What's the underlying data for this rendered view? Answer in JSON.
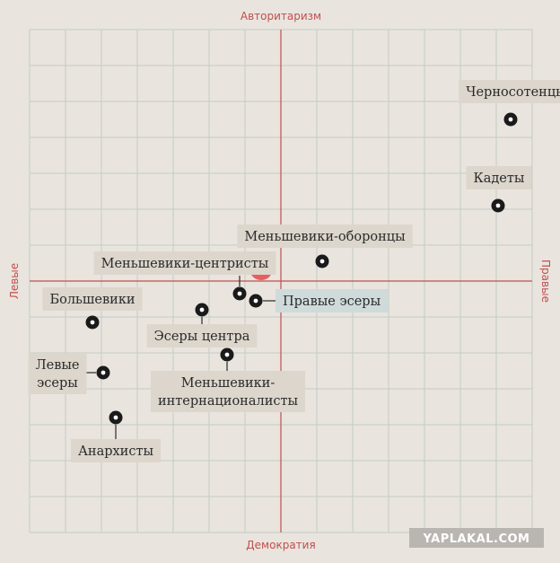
{
  "chart_data": {
    "type": "scatter",
    "grid": true,
    "axes": {
      "top": "Авторитаризм",
      "bottom": "Демократия",
      "left": "Левые",
      "right": "Правые"
    },
    "xlim": [
      -7,
      7
    ],
    "ylim": [
      -7,
      7
    ],
    "points": [
      {
        "name": "Черносотенцы",
        "x": 6.4,
        "y": 4.5
      },
      {
        "name": "Кадеты",
        "x": 6.05,
        "y": 2.1
      },
      {
        "name": "Меньшевики-оборонцы",
        "x": 1.15,
        "y": 0.55
      },
      {
        "name": "Меньшевики-центристы",
        "x": -1.15,
        "y": -0.35
      },
      {
        "name": "Правые эсеры",
        "x": -0.7,
        "y": -0.55
      },
      {
        "name": "Большевики",
        "x": -5.25,
        "y": -1.15
      },
      {
        "name": "Эсеры центра",
        "x": -2.2,
        "y": -0.8
      },
      {
        "name": "Меньшевики-интернационалисты",
        "x": -1.5,
        "y": -2.05
      },
      {
        "name": "Левые эсеры",
        "x": -4.95,
        "y": -2.55
      },
      {
        "name": "Анархисты",
        "x": -4.6,
        "y": -3.8
      }
    ],
    "highlight": {
      "x": -0.55,
      "y": 0.35,
      "color": "#e8464b"
    }
  },
  "watermark": "YAPLAKAL.COM",
  "colors": {
    "background": "#e9e4de",
    "grid": "#c3cdc4",
    "axis": "#c0504d",
    "label_box": "#dcd6cd",
    "label_box_highlight": "#cfdadb",
    "marker": "#1a1a1a"
  }
}
